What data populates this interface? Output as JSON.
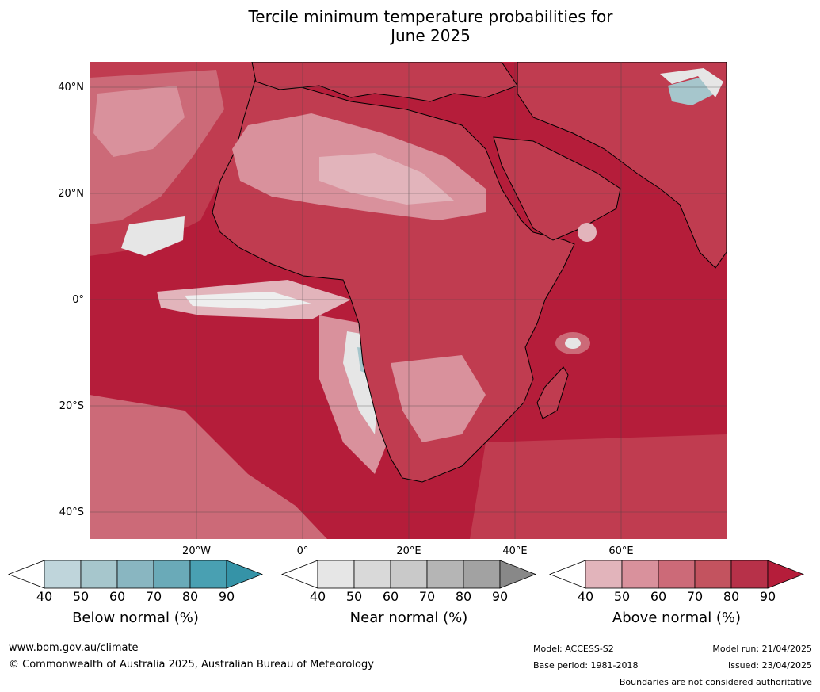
{
  "title": {
    "line1": "Tercile minimum temperature probabilities for",
    "line2": "June 2025"
  },
  "map": {
    "lat_labels": [
      "40°N",
      "20°N",
      "0°",
      "20°S",
      "40°S"
    ],
    "lon_labels": [
      "20°W",
      "0°",
      "20°E",
      "40°E",
      "60°E"
    ],
    "colors": {
      "ocean_dark": "#b51d3a",
      "above_80": "#c03c50",
      "above_70": "#cc6a78",
      "above_60": "#d9919c",
      "above_50": "#e2b4bb",
      "near_40": "#e6e6e6",
      "below_50": "#a6c6cc",
      "coast": "#000000",
      "border": "#7f7f7f",
      "grid": "#444444"
    }
  },
  "legends": [
    {
      "caption": "Below normal (%)",
      "ticks": [
        "40",
        "50",
        "60",
        "70",
        "80",
        "90"
      ],
      "colors": [
        "#ffffff",
        "#bfd5db",
        "#a6c6cc",
        "#89b6c1",
        "#6aaab8",
        "#49a0b2",
        "#3593a7"
      ]
    },
    {
      "caption": "Near normal (%)",
      "ticks": [
        "40",
        "50",
        "60",
        "70",
        "80",
        "90"
      ],
      "colors": [
        "#ffffff",
        "#e6e6e6",
        "#d9d9d9",
        "#c9c9c9",
        "#b5b5b5",
        "#a2a2a2",
        "#888888"
      ]
    },
    {
      "caption": "Above normal (%)",
      "ticks": [
        "40",
        "50",
        "60",
        "70",
        "80",
        "90"
      ],
      "colors": [
        "#ffffff",
        "#e2b4bb",
        "#d9919c",
        "#cc6a78",
        "#c3535f",
        "#b73149",
        "#b51d3a"
      ]
    }
  ],
  "footer": {
    "url": "www.bom.gov.au/climate",
    "copyright": "© Commonwealth of Australia 2025, Australian Bureau of Meteorology",
    "model": "Model: ACCESS-S2",
    "base_period": "Base period: 1981-2018",
    "model_run": "Model run: 21/04/2025",
    "issued": "Issued: 23/04/2025",
    "disclaimer": "Boundaries are not considered authoritative"
  }
}
